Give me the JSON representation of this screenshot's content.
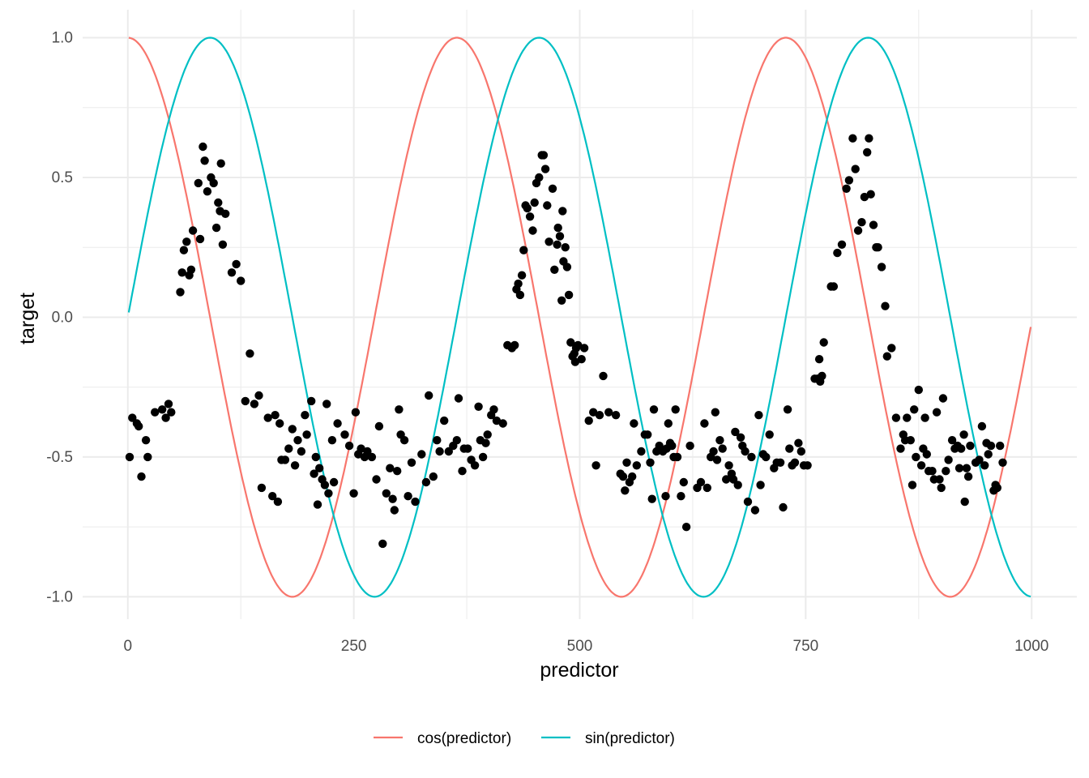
{
  "chart_data": {
    "type": "scatter",
    "xlabel": "predictor",
    "ylabel": "target",
    "xlim": [
      -50,
      1050
    ],
    "ylim": [
      -1.08,
      1.1
    ],
    "x_ticks": [
      0,
      250,
      500,
      750,
      1000
    ],
    "x_tick_labels": [
      "0",
      "250",
      "500",
      "750",
      "1000"
    ],
    "y_ticks": [
      -1.0,
      -0.5,
      0.0,
      0.5,
      1.0
    ],
    "y_tick_labels": [
      "-1.0",
      "-0.5",
      "0.0",
      "0.5",
      "1.0"
    ],
    "grid": true,
    "legend_position": "bottom",
    "lines": [
      {
        "name": "cos(predictor)",
        "function": "cos",
        "period": 364,
        "x_start": 1,
        "x_end": 1000,
        "color": "#F8766D"
      },
      {
        "name": "sin(predictor)",
        "function": "sin",
        "period": 364,
        "x_start": 1,
        "x_end": 1000,
        "color": "#00BFC4"
      }
    ],
    "points_color": "#000000",
    "points": [
      [
        2,
        -0.5
      ],
      [
        5,
        -0.36
      ],
      [
        10,
        -0.38
      ],
      [
        12,
        -0.39
      ],
      [
        15,
        -0.57
      ],
      [
        20,
        -0.44
      ],
      [
        22,
        -0.5
      ],
      [
        30,
        -0.34
      ],
      [
        38,
        -0.33
      ],
      [
        42,
        -0.36
      ],
      [
        45,
        -0.31
      ],
      [
        48,
        -0.34
      ],
      [
        58,
        0.09
      ],
      [
        60,
        0.16
      ],
      [
        62,
        0.24
      ],
      [
        65,
        0.27
      ],
      [
        68,
        0.15
      ],
      [
        70,
        0.17
      ],
      [
        72,
        0.31
      ],
      [
        78,
        0.48
      ],
      [
        80,
        0.28
      ],
      [
        83,
        0.61
      ],
      [
        85,
        0.56
      ],
      [
        88,
        0.45
      ],
      [
        92,
        0.5
      ],
      [
        95,
        0.48
      ],
      [
        98,
        0.32
      ],
      [
        100,
        0.41
      ],
      [
        102,
        0.38
      ],
      [
        103,
        0.55
      ],
      [
        105,
        0.26
      ],
      [
        108,
        0.37
      ],
      [
        115,
        0.16
      ],
      [
        120,
        0.19
      ],
      [
        125,
        0.13
      ],
      [
        130,
        -0.3
      ],
      [
        135,
        -0.13
      ],
      [
        140,
        -0.31
      ],
      [
        145,
        -0.28
      ],
      [
        148,
        -0.61
      ],
      [
        155,
        -0.36
      ],
      [
        160,
        -0.64
      ],
      [
        163,
        -0.35
      ],
      [
        166,
        -0.66
      ],
      [
        168,
        -0.38
      ],
      [
        170,
        -0.51
      ],
      [
        174,
        -0.51
      ],
      [
        178,
        -0.47
      ],
      [
        182,
        -0.4
      ],
      [
        185,
        -0.53
      ],
      [
        188,
        -0.44
      ],
      [
        192,
        -0.48
      ],
      [
        196,
        -0.35
      ],
      [
        198,
        -0.42
      ],
      [
        203,
        -0.3
      ],
      [
        206,
        -0.56
      ],
      [
        208,
        -0.5
      ],
      [
        210,
        -0.67
      ],
      [
        212,
        -0.54
      ],
      [
        215,
        -0.58
      ],
      [
        218,
        -0.6
      ],
      [
        220,
        -0.31
      ],
      [
        222,
        -0.63
      ],
      [
        226,
        -0.44
      ],
      [
        228,
        -0.59
      ],
      [
        232,
        -0.38
      ],
      [
        240,
        -0.42
      ],
      [
        245,
        -0.46
      ],
      [
        250,
        -0.63
      ],
      [
        252,
        -0.34
      ],
      [
        255,
        -0.49
      ],
      [
        258,
        -0.47
      ],
      [
        262,
        -0.5
      ],
      [
        265,
        -0.48
      ],
      [
        270,
        -0.5
      ],
      [
        275,
        -0.58
      ],
      [
        278,
        -0.39
      ],
      [
        282,
        -0.81
      ],
      [
        286,
        -0.63
      ],
      [
        290,
        -0.54
      ],
      [
        293,
        -0.65
      ],
      [
        295,
        -0.69
      ],
      [
        298,
        -0.55
      ],
      [
        300,
        -0.33
      ],
      [
        302,
        -0.42
      ],
      [
        306,
        -0.44
      ],
      [
        310,
        -0.64
      ],
      [
        314,
        -0.52
      ],
      [
        318,
        -0.66
      ],
      [
        325,
        -0.49
      ],
      [
        330,
        -0.59
      ],
      [
        333,
        -0.28
      ],
      [
        338,
        -0.57
      ],
      [
        342,
        -0.44
      ],
      [
        345,
        -0.48
      ],
      [
        350,
        -0.37
      ],
      [
        355,
        -0.48
      ],
      [
        360,
        -0.46
      ],
      [
        364,
        -0.44
      ],
      [
        366,
        -0.29
      ],
      [
        370,
        -0.55
      ],
      [
        372,
        -0.47
      ],
      [
        376,
        -0.47
      ],
      [
        380,
        -0.51
      ],
      [
        384,
        -0.53
      ],
      [
        388,
        -0.32
      ],
      [
        390,
        -0.44
      ],
      [
        393,
        -0.5
      ],
      [
        396,
        -0.45
      ],
      [
        398,
        -0.42
      ],
      [
        402,
        -0.35
      ],
      [
        405,
        -0.33
      ],
      [
        408,
        -0.37
      ],
      [
        415,
        -0.38
      ],
      [
        420,
        -0.1
      ],
      [
        425,
        -0.11
      ],
      [
        428,
        -0.1
      ],
      [
        430,
        0.1
      ],
      [
        432,
        0.12
      ],
      [
        434,
        0.08
      ],
      [
        436,
        0.15
      ],
      [
        438,
        0.24
      ],
      [
        440,
        0.4
      ],
      [
        442,
        0.39
      ],
      [
        445,
        0.36
      ],
      [
        448,
        0.31
      ],
      [
        450,
        0.41
      ],
      [
        452,
        0.48
      ],
      [
        455,
        0.5
      ],
      [
        458,
        0.58
      ],
      [
        460,
        0.58
      ],
      [
        462,
        0.53
      ],
      [
        464,
        0.4
      ],
      [
        466,
        0.27
      ],
      [
        470,
        0.46
      ],
      [
        472,
        0.17
      ],
      [
        475,
        0.26
      ],
      [
        476,
        0.32
      ],
      [
        478,
        0.29
      ],
      [
        480,
        0.06
      ],
      [
        481,
        0.38
      ],
      [
        482,
        0.2
      ],
      [
        484,
        0.25
      ],
      [
        486,
        0.18
      ],
      [
        488,
        0.08
      ],
      [
        490,
        -0.09
      ],
      [
        492,
        -0.14
      ],
      [
        494,
        -0.13
      ],
      [
        495,
        -0.16
      ],
      [
        496,
        -0.11
      ],
      [
        498,
        -0.1
      ],
      [
        502,
        -0.15
      ],
      [
        505,
        -0.11
      ],
      [
        510,
        -0.37
      ],
      [
        515,
        -0.34
      ],
      [
        518,
        -0.53
      ],
      [
        522,
        -0.35
      ],
      [
        526,
        -0.21
      ],
      [
        532,
        -0.34
      ],
      [
        540,
        -0.35
      ],
      [
        545,
        -0.56
      ],
      [
        548,
        -0.57
      ],
      [
        550,
        -0.62
      ],
      [
        552,
        -0.52
      ],
      [
        555,
        -0.59
      ],
      [
        558,
        -0.57
      ],
      [
        560,
        -0.38
      ],
      [
        563,
        -0.53
      ],
      [
        568,
        -0.48
      ],
      [
        572,
        -0.42
      ],
      [
        575,
        -0.42
      ],
      [
        578,
        -0.52
      ],
      [
        580,
        -0.65
      ],
      [
        582,
        -0.33
      ],
      [
        585,
        -0.48
      ],
      [
        588,
        -0.46
      ],
      [
        592,
        -0.48
      ],
      [
        595,
        -0.64
      ],
      [
        596,
        -0.47
      ],
      [
        598,
        -0.38
      ],
      [
        600,
        -0.45
      ],
      [
        602,
        -0.46
      ],
      [
        604,
        -0.5
      ],
      [
        606,
        -0.33
      ],
      [
        608,
        -0.5
      ],
      [
        612,
        -0.64
      ],
      [
        615,
        -0.59
      ],
      [
        618,
        -0.75
      ],
      [
        622,
        -0.46
      ],
      [
        630,
        -0.61
      ],
      [
        634,
        -0.59
      ],
      [
        638,
        -0.38
      ],
      [
        641,
        -0.61
      ],
      [
        645,
        -0.5
      ],
      [
        648,
        -0.48
      ],
      [
        650,
        -0.34
      ],
      [
        652,
        -0.51
      ],
      [
        655,
        -0.44
      ],
      [
        658,
        -0.47
      ],
      [
        662,
        -0.58
      ],
      [
        665,
        -0.53
      ],
      [
        668,
        -0.56
      ],
      [
        670,
        -0.58
      ],
      [
        672,
        -0.41
      ],
      [
        675,
        -0.6
      ],
      [
        678,
        -0.43
      ],
      [
        680,
        -0.46
      ],
      [
        683,
        -0.48
      ],
      [
        686,
        -0.66
      ],
      [
        690,
        -0.5
      ],
      [
        694,
        -0.69
      ],
      [
        698,
        -0.35
      ],
      [
        700,
        -0.6
      ],
      [
        703,
        -0.49
      ],
      [
        706,
        -0.5
      ],
      [
        710,
        -0.42
      ],
      [
        715,
        -0.54
      ],
      [
        718,
        -0.52
      ],
      [
        722,
        -0.52
      ],
      [
        725,
        -0.68
      ],
      [
        730,
        -0.33
      ],
      [
        732,
        -0.47
      ],
      [
        735,
        -0.53
      ],
      [
        738,
        -0.52
      ],
      [
        742,
        -0.45
      ],
      [
        745,
        -0.48
      ],
      [
        748,
        -0.53
      ],
      [
        752,
        -0.53
      ],
      [
        760,
        -0.22
      ],
      [
        763,
        -0.22
      ],
      [
        765,
        -0.15
      ],
      [
        766,
        -0.23
      ],
      [
        768,
        -0.21
      ],
      [
        770,
        -0.09
      ],
      [
        778,
        0.11
      ],
      [
        781,
        0.11
      ],
      [
        785,
        0.23
      ],
      [
        790,
        0.26
      ],
      [
        795,
        0.46
      ],
      [
        798,
        0.49
      ],
      [
        802,
        0.64
      ],
      [
        805,
        0.53
      ],
      [
        808,
        0.31
      ],
      [
        812,
        0.34
      ],
      [
        815,
        0.43
      ],
      [
        818,
        0.59
      ],
      [
        820,
        0.64
      ],
      [
        822,
        0.44
      ],
      [
        825,
        0.33
      ],
      [
        828,
        0.25
      ],
      [
        830,
        0.25
      ],
      [
        834,
        0.18
      ],
      [
        838,
        0.04
      ],
      [
        840,
        -0.14
      ],
      [
        845,
        -0.11
      ],
      [
        850,
        -0.36
      ],
      [
        855,
        -0.47
      ],
      [
        858,
        -0.42
      ],
      [
        860,
        -0.44
      ],
      [
        862,
        -0.36
      ],
      [
        866,
        -0.44
      ],
      [
        868,
        -0.6
      ],
      [
        870,
        -0.33
      ],
      [
        872,
        -0.5
      ],
      [
        875,
        -0.26
      ],
      [
        878,
        -0.53
      ],
      [
        880,
        -0.47
      ],
      [
        882,
        -0.36
      ],
      [
        884,
        -0.49
      ],
      [
        886,
        -0.55
      ],
      [
        890,
        -0.55
      ],
      [
        892,
        -0.58
      ],
      [
        895,
        -0.34
      ],
      [
        898,
        -0.58
      ],
      [
        900,
        -0.61
      ],
      [
        902,
        -0.29
      ],
      [
        905,
        -0.55
      ],
      [
        908,
        -0.51
      ],
      [
        912,
        -0.44
      ],
      [
        915,
        -0.47
      ],
      [
        918,
        -0.46
      ],
      [
        920,
        -0.54
      ],
      [
        922,
        -0.47
      ],
      [
        925,
        -0.42
      ],
      [
        926,
        -0.66
      ],
      [
        928,
        -0.54
      ],
      [
        930,
        -0.57
      ],
      [
        932,
        -0.46
      ],
      [
        938,
        -0.52
      ],
      [
        942,
        -0.51
      ],
      [
        945,
        -0.39
      ],
      [
        948,
        -0.53
      ],
      [
        950,
        -0.45
      ],
      [
        952,
        -0.49
      ],
      [
        955,
        -0.46
      ],
      [
        958,
        -0.62
      ],
      [
        960,
        -0.6
      ],
      [
        962,
        -0.61
      ],
      [
        965,
        -0.46
      ],
      [
        968,
        -0.52
      ]
    ]
  }
}
